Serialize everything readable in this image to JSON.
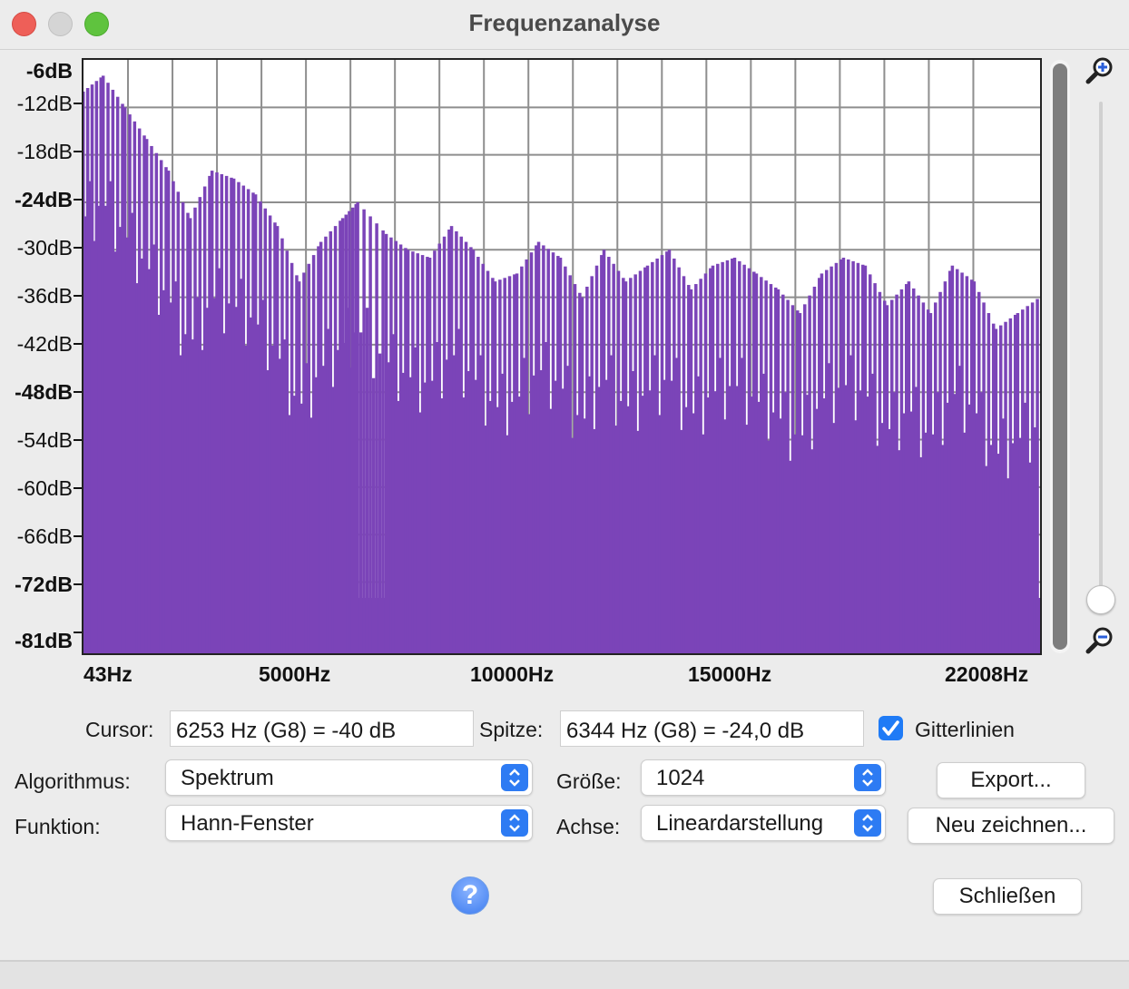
{
  "window": {
    "title": "Frequenzanalyse"
  },
  "plot": {
    "bar_color": "#7b44b8",
    "grid_color": "#8e8e8e",
    "grid_enabled": true
  },
  "chart_data": {
    "type": "bar",
    "title": "",
    "xlabel": "",
    "ylabel": "",
    "x_ticks": [
      "43Hz",
      "5000Hz",
      "10000Hz",
      "15000Hz",
      "22008Hz"
    ],
    "y_ticks": [
      "-6dB",
      "-12dB",
      "-18dB",
      "-24dB",
      "-30dB",
      "-36dB",
      "-42dB",
      "-48dB",
      "-54dB",
      "-60dB",
      "-66dB",
      "-72dB",
      "-81dB"
    ],
    "xlim": [
      43,
      22008
    ],
    "ylim": [
      -81,
      -6
    ],
    "series": [
      {
        "x": [
          43,
          500,
          1000,
          1500,
          2000,
          2500,
          3000,
          3500,
          4000,
          4500,
          5000,
          5500,
          6000,
          6344,
          7000,
          7500,
          8000,
          8500,
          9000,
          9500,
          10000,
          10500,
          11000,
          11500,
          12000,
          12500,
          13000,
          13500,
          14000,
          14500,
          15000,
          15500,
          16000,
          16500,
          17000,
          17500,
          18000,
          18500,
          19000,
          19500,
          20000,
          20500,
          21000,
          21500,
          22008
        ],
        "values": [
          -10,
          -8,
          -12,
          -16,
          -20,
          -26,
          -20,
          -21,
          -23,
          -27,
          -34,
          -29,
          -26,
          -24,
          -28,
          -30,
          -31,
          -27,
          -30,
          -34,
          -33,
          -29,
          -31,
          -36,
          -30,
          -34,
          -32,
          -30,
          -35,
          -32,
          -31,
          -33,
          -35,
          -38,
          -33,
          -31,
          -32,
          -37,
          -34,
          -38,
          -32,
          -34,
          -40,
          -38,
          -36
        ]
      }
    ]
  },
  "controls": {
    "cursor_label": "Cursor:",
    "cursor_value": "6253 Hz (G8) = -40 dB",
    "peak_label": "Spitze:",
    "peak_value": "6344 Hz (G8) = -24,0 dB",
    "grid_checkbox_label": "Gitterlinien",
    "grid_checked": true,
    "algorithm_label": "Algorithmus:",
    "algorithm_value": "Spektrum",
    "function_label": "Funktion:",
    "function_value": "Hann-Fenster",
    "size_label": "Größe:",
    "size_value": "1024",
    "axis_label": "Achse:",
    "axis_value": "Lineardarstellung",
    "export_button": "Export...",
    "redraw_button": "Neu zeichnen...",
    "close_button": "Schließen",
    "help_glyph": "?"
  },
  "accent_color": "#1f7bf6"
}
